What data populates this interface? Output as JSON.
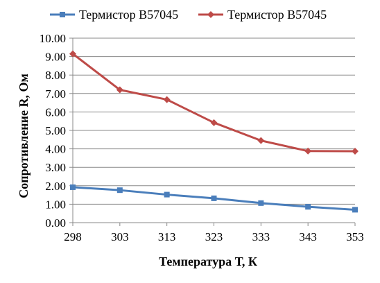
{
  "chart_data": {
    "type": "line",
    "categories": [
      "298",
      "303",
      "313",
      "323",
      "333",
      "343",
      "353"
    ],
    "series": [
      {
        "name": "Термистор B57045",
        "color": "#4a7ebb",
        "marker": "square",
        "values": [
          1.92,
          1.76,
          1.52,
          1.32,
          1.06,
          0.86,
          0.7
        ]
      },
      {
        "name": "Термистор B57045",
        "color": "#be4b48",
        "marker": "diamond",
        "values": [
          9.15,
          7.2,
          6.67,
          5.42,
          4.45,
          3.88,
          3.87
        ]
      }
    ],
    "xlabel": "Температура Т, К",
    "ylabel": "Сопротивление R, Ом",
    "ylim": [
      0,
      10
    ],
    "yticks": [
      "0.00",
      "1.00",
      "2.00",
      "3.00",
      "4.00",
      "5.00",
      "6.00",
      "7.00",
      "8.00",
      "9.00",
      "10.00"
    ],
    "grid": true,
    "legend_position": "top"
  }
}
